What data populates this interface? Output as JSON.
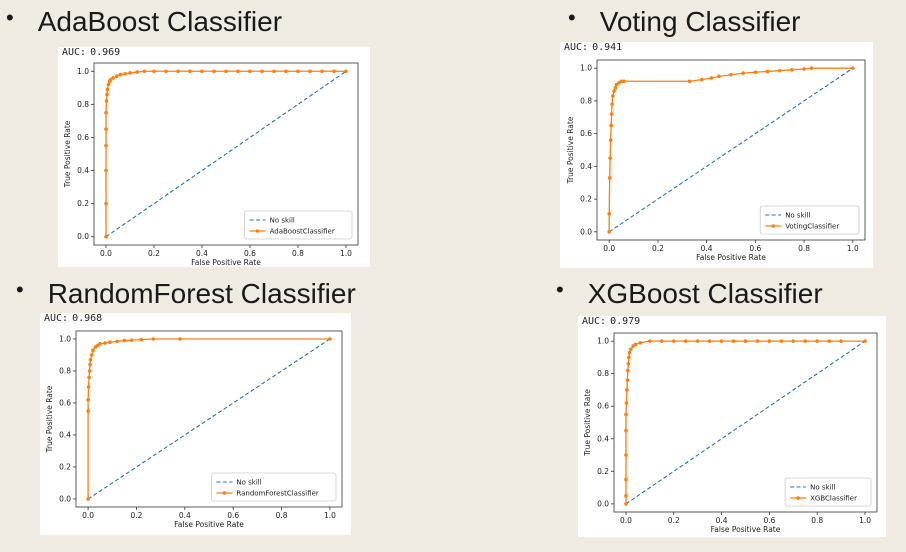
{
  "auc_prefix": "AUC:",
  "charts": [
    {
      "heading": "AdaBoost Classifier",
      "auc": "0.969",
      "type": "line",
      "xlabel": "False Positive Rate",
      "ylabel": "True Positive Rate",
      "xlim": [
        -0.05,
        1.05
      ],
      "ylim": [
        -0.05,
        1.05
      ],
      "xticks": [
        "0.0",
        "0.2",
        "0.4",
        "0.6",
        "0.8",
        "1.0"
      ],
      "yticks": [
        "0.0",
        "0.2",
        "0.4",
        "0.6",
        "0.8",
        "1.0"
      ],
      "legend_position": "bottom-right",
      "series": [
        {
          "name": "No skill",
          "style": "dashed",
          "color": "#1f77b4",
          "x": [
            0,
            1
          ],
          "y": [
            0,
            1
          ]
        },
        {
          "name": "AdaBoostClassifier",
          "style": "line-marker",
          "color": "#ff7f0e",
          "x": [
            0,
            0,
            0,
            0,
            0,
            0,
            0.002,
            0.004,
            0.006,
            0.01,
            0.015,
            0.02,
            0.03,
            0.045,
            0.06,
            0.08,
            0.1,
            0.13,
            0.16,
            0.2,
            0.25,
            0.3,
            0.35,
            0.4,
            0.45,
            0.5,
            0.55,
            0.6,
            0.65,
            0.7,
            0.75,
            0.8,
            0.85,
            0.9,
            0.95,
            1.0
          ],
          "y": [
            0,
            0.2,
            0.4,
            0.55,
            0.65,
            0.75,
            0.82,
            0.86,
            0.89,
            0.92,
            0.94,
            0.95,
            0.96,
            0.97,
            0.98,
            0.985,
            0.99,
            0.995,
            1.0,
            1.0,
            1.0,
            1.0,
            1.0,
            1.0,
            1.0,
            1.0,
            1.0,
            1.0,
            1.0,
            1.0,
            1.0,
            1.0,
            1.0,
            1.0,
            1.0,
            1.0
          ]
        }
      ]
    },
    {
      "heading": "Voting Classifier",
      "auc": "0.941",
      "type": "line",
      "xlabel": "False Positive Rate",
      "ylabel": "True Positive Rate",
      "xlim": [
        -0.05,
        1.05
      ],
      "ylim": [
        -0.05,
        1.05
      ],
      "xticks": [
        "0.0",
        "0.2",
        "0.4",
        "0.6",
        "0.8",
        "1.0"
      ],
      "yticks": [
        "0.0",
        "0.2",
        "0.4",
        "0.6",
        "0.8",
        "1.0"
      ],
      "legend_position": "bottom-right",
      "series": [
        {
          "name": "No skill",
          "style": "dashed",
          "color": "#1f77b4",
          "x": [
            0,
            1
          ],
          "y": [
            0,
            1
          ]
        },
        {
          "name": "VotingClassifier",
          "style": "line-marker",
          "color": "#ff7f0e",
          "x": [
            0,
            0,
            0.002,
            0.004,
            0.006,
            0.008,
            0.01,
            0.012,
            0.015,
            0.02,
            0.025,
            0.03,
            0.04,
            0.05,
            0.06,
            0.33,
            0.38,
            0.42,
            0.45,
            0.5,
            0.55,
            0.6,
            0.65,
            0.7,
            0.75,
            0.8,
            0.83,
            1.0
          ],
          "y": [
            0,
            0.11,
            0.33,
            0.45,
            0.56,
            0.65,
            0.72,
            0.78,
            0.83,
            0.86,
            0.88,
            0.9,
            0.91,
            0.92,
            0.92,
            0.92,
            0.93,
            0.94,
            0.95,
            0.96,
            0.97,
            0.975,
            0.98,
            0.985,
            0.99,
            0.995,
            1.0,
            1.0
          ]
        }
      ]
    },
    {
      "heading": "RandomForest Classifier",
      "auc": "0.968",
      "type": "line",
      "xlabel": "False Positive Rate",
      "ylabel": "True Positive Rate",
      "xlim": [
        -0.05,
        1.05
      ],
      "ylim": [
        -0.05,
        1.05
      ],
      "xticks": [
        "0.0",
        "0.2",
        "0.4",
        "0.6",
        "0.8",
        "1.0"
      ],
      "yticks": [
        "0.0",
        "0.2",
        "0.4",
        "0.6",
        "0.8",
        "1.0"
      ],
      "legend_position": "bottom-right",
      "series": [
        {
          "name": "No skill",
          "style": "dashed",
          "color": "#1f77b4",
          "x": [
            0,
            1
          ],
          "y": [
            0,
            1
          ]
        },
        {
          "name": "RandomForestClassifier",
          "style": "line-marker",
          "color": "#ff7f0e",
          "x": [
            0,
            0,
            0,
            0.002,
            0.004,
            0.006,
            0.008,
            0.01,
            0.015,
            0.02,
            0.03,
            0.04,
            0.05,
            0.07,
            0.09,
            0.12,
            0.15,
            0.18,
            0.22,
            0.27,
            0.38,
            1.0
          ],
          "y": [
            0,
            0.55,
            0.62,
            0.7,
            0.76,
            0.8,
            0.84,
            0.87,
            0.9,
            0.93,
            0.95,
            0.96,
            0.97,
            0.975,
            0.98,
            0.985,
            0.99,
            0.993,
            0.996,
            1.0,
            1.0,
            1.0
          ]
        }
      ]
    },
    {
      "heading": "XGBoost Classifier",
      "auc": "0.979",
      "type": "line",
      "xlabel": "False Positive Rate",
      "ylabel": "True Positive Rate",
      "xlim": [
        -0.05,
        1.05
      ],
      "ylim": [
        -0.05,
        1.05
      ],
      "xticks": [
        "0.0",
        "0.2",
        "0.4",
        "0.6",
        "0.8",
        "1.0"
      ],
      "yticks": [
        "0.0",
        "0.2",
        "0.4",
        "0.6",
        "0.8",
        "1.0"
      ],
      "legend_position": "bottom-right",
      "series": [
        {
          "name": "No skill",
          "style": "dashed",
          "color": "#1f77b4",
          "x": [
            0,
            1
          ],
          "y": [
            0,
            1
          ]
        },
        {
          "name": "XGBClassifier",
          "style": "line-marker",
          "color": "#ff7f0e",
          "x": [
            0,
            0,
            0,
            0,
            0,
            0,
            0.002,
            0.004,
            0.006,
            0.008,
            0.01,
            0.012,
            0.015,
            0.02,
            0.03,
            0.04,
            0.06,
            0.1,
            0.15,
            0.2,
            0.25,
            0.3,
            0.35,
            0.4,
            0.45,
            0.5,
            0.55,
            0.6,
            0.65,
            0.7,
            0.75,
            0.8,
            0.85,
            0.9,
            1.0
          ],
          "y": [
            0,
            0.05,
            0.15,
            0.3,
            0.45,
            0.55,
            0.62,
            0.7,
            0.76,
            0.82,
            0.86,
            0.9,
            0.93,
            0.95,
            0.97,
            0.98,
            0.99,
            1.0,
            1.0,
            1.0,
            1.0,
            1.0,
            1.0,
            1.0,
            1.0,
            1.0,
            1.0,
            1.0,
            1.0,
            1.0,
            1.0,
            1.0,
            1.0,
            1.0,
            1.0
          ]
        }
      ]
    }
  ]
}
